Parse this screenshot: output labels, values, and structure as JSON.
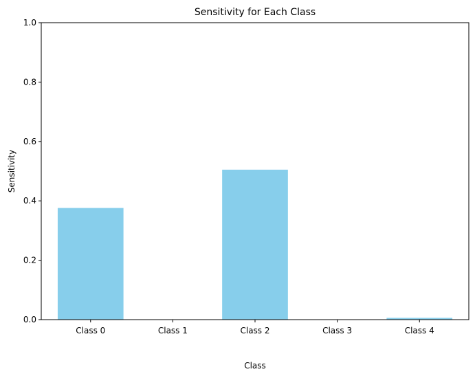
{
  "chart_data": {
    "type": "bar",
    "title": "Sensitivity for Each Class",
    "xlabel": "Class",
    "ylabel": "Sensitivity",
    "categories": [
      "Class 0",
      "Class 1",
      "Class 2",
      "Class 3",
      "Class 4"
    ],
    "values": [
      0.376,
      0.0,
      0.505,
      0.0,
      0.006
    ],
    "ylim": [
      0,
      1.0
    ],
    "yticks": [
      0.0,
      0.2,
      0.4,
      0.6,
      0.8,
      1.0
    ],
    "ytick_labels": [
      "0.0",
      "0.2",
      "0.4",
      "0.6",
      "0.8",
      "1.0"
    ],
    "grid": false,
    "bar_color": "#87CEEB"
  }
}
